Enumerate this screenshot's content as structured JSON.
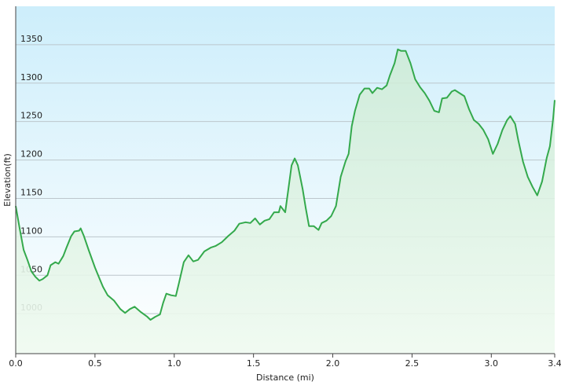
{
  "chart_data": {
    "type": "area",
    "x_label": "Distance  (mi)",
    "y_label": "Elevation(ft)",
    "x": [
      0,
      0.025,
      0.05,
      0.074,
      0.099,
      0.124,
      0.149,
      0.17,
      0.2,
      0.22,
      0.25,
      0.27,
      0.3,
      0.32,
      0.35,
      0.37,
      0.4,
      0.41,
      0.43,
      0.46,
      0.5,
      0.52,
      0.55,
      0.58,
      0.62,
      0.66,
      0.69,
      0.72,
      0.75,
      0.79,
      0.83,
      0.85,
      0.88,
      0.91,
      0.93,
      0.95,
      0.98,
      1.01,
      1.03,
      1.06,
      1.09,
      1.12,
      1.15,
      1.19,
      1.23,
      1.26,
      1.3,
      1.34,
      1.38,
      1.41,
      1.45,
      1.48,
      1.51,
      1.54,
      1.57,
      1.6,
      1.63,
      1.66,
      1.67,
      1.7,
      1.72,
      1.74,
      1.76,
      1.78,
      1.81,
      1.83,
      1.85,
      1.88,
      1.91,
      1.93,
      1.96,
      1.99,
      2.02,
      2.05,
      2.08,
      2.1,
      2.12,
      2.14,
      2.17,
      2.2,
      2.23,
      2.25,
      2.28,
      2.31,
      2.34,
      2.36,
      2.39,
      2.41,
      2.43,
      2.46,
      2.49,
      2.52,
      2.55,
      2.58,
      2.61,
      2.64,
      2.67,
      2.69,
      2.72,
      2.75,
      2.77,
      2.8,
      2.83,
      2.86,
      2.89,
      2.92,
      2.95,
      2.98,
      3.01,
      3.04,
      3.07,
      3.1,
      3.12,
      3.15,
      3.17,
      3.2,
      3.23,
      3.26,
      3.29,
      3.32,
      3.35,
      3.37,
      3.39,
      3.4
    ],
    "series": [
      {
        "color": "#34a94c",
        "values": [
          1140,
          1111,
          1083,
          1070,
          1055,
          1048,
          1043,
          1045,
          1050,
          1063,
          1067,
          1065,
          1075,
          1086,
          1101,
          1107,
          1108,
          1111,
          1101,
          1083,
          1060,
          1050,
          1035,
          1024,
          1017,
          1006,
          1001,
          1006,
          1009,
          1002,
          996,
          992,
          996,
          999,
          1014,
          1026,
          1024,
          1023,
          1040,
          1067,
          1076,
          1068,
          1070,
          1081,
          1086,
          1088,
          1093,
          1101,
          1108,
          1117,
          1119,
          1118,
          1124,
          1116,
          1121,
          1123,
          1132,
          1132,
          1140,
          1132,
          1162,
          1193,
          1202,
          1193,
          1162,
          1137,
          1114,
          1114,
          1109,
          1118,
          1121,
          1127,
          1140,
          1178,
          1198,
          1208,
          1244,
          1264,
          1285,
          1293,
          1293,
          1287,
          1294,
          1292,
          1297,
          1310,
          1326,
          1344,
          1342,
          1342,
          1326,
          1305,
          1295,
          1287,
          1277,
          1264,
          1262,
          1280,
          1281,
          1289,
          1291,
          1287,
          1283,
          1266,
          1252,
          1247,
          1239,
          1227,
          1208,
          1221,
          1239,
          1252,
          1257,
          1247,
          1226,
          1198,
          1178,
          1165,
          1154,
          1172,
          1203,
          1218,
          1254,
          1278
        ]
      }
    ],
    "xlim": [
      0,
      3.4
    ],
    "ylim": [
      948,
      1400
    ],
    "xticks": [
      {
        "value": 0,
        "label": "0.0"
      },
      0.5,
      {
        "value": 1,
        "label": "1.0"
      },
      1.5,
      {
        "value": 2,
        "label": "2.0"
      },
      2.5,
      {
        "value": 3,
        "label": "3.0"
      },
      3.4
    ],
    "yticks": [
      1000,
      1050,
      1100,
      1150,
      1200,
      1250,
      1300,
      1350
    ],
    "grid": true
  }
}
